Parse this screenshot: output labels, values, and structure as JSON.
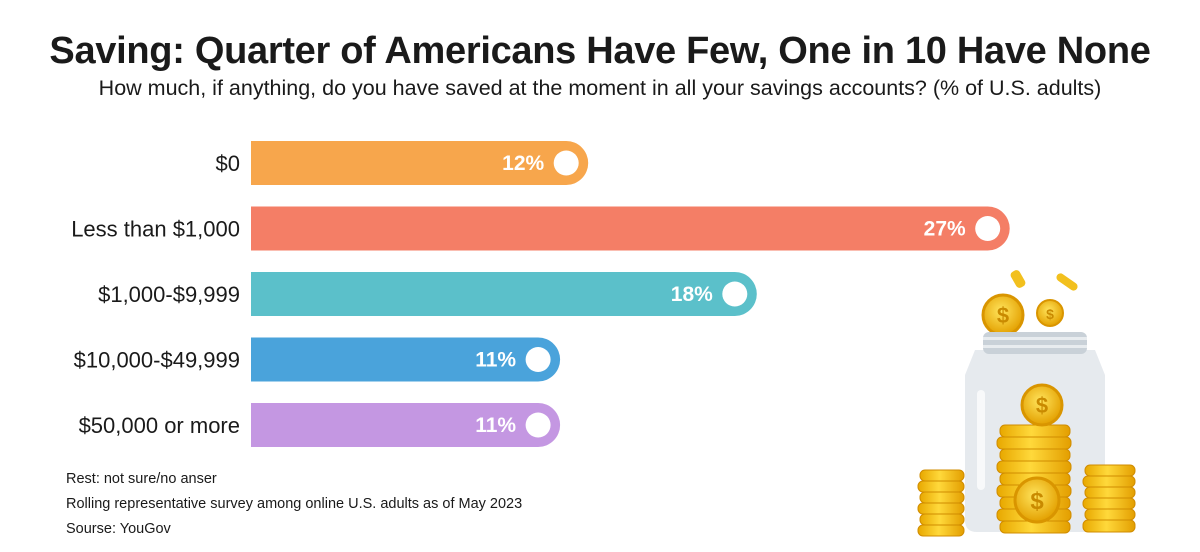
{
  "title": "Saving:  Quarter of Americans Have Few, One in 10 Have None",
  "subtitle": "How much, if anything, do you have saved at the moment in all your savings accounts? (% of U.S. adults)",
  "chart_data": {
    "type": "bar",
    "orientation": "horizontal",
    "categories": [
      "$0",
      "Less than $1,000",
      "$1,000-$9,999",
      "$10,000-$49,999",
      "$50,000 or more"
    ],
    "values": [
      12,
      27,
      18,
      11,
      11
    ],
    "value_labels": [
      "12%",
      "27%",
      "18%",
      "11%",
      "11%"
    ],
    "colors": [
      "#F7A64C",
      "#F47E66",
      "#5BC0CA",
      "#4AA3DB",
      "#C497E2"
    ],
    "unit": "%",
    "grid": false,
    "legend": "none"
  },
  "notes": [
    "Rest: not sure/no anser",
    "Rolling representative survey among online U.S. adults as of May 2023",
    "Sourse: YouGov"
  ],
  "illustration": "coin-jar-icon"
}
